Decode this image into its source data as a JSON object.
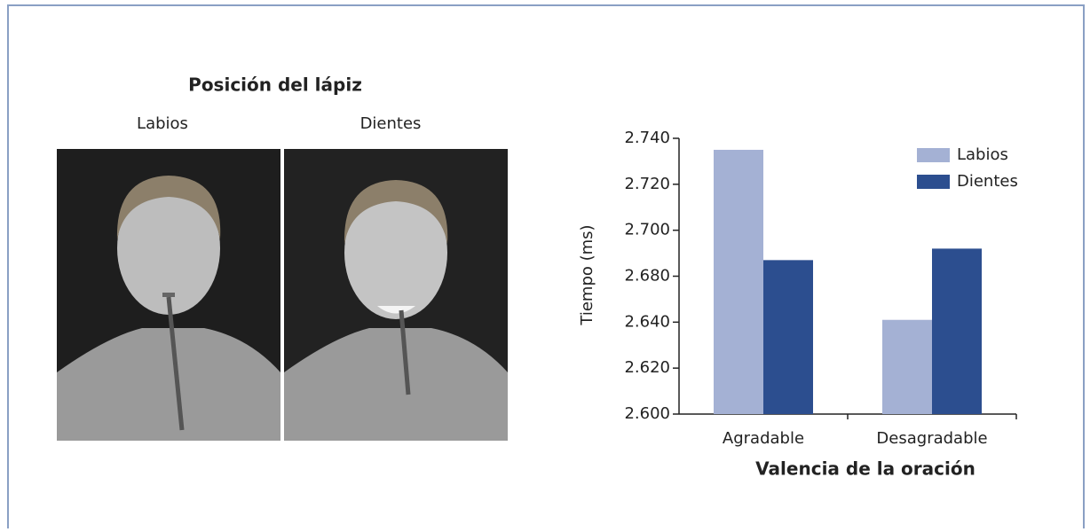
{
  "figure_title": "Posición del lápiz",
  "photo_labels": [
    "Labios",
    "Dientes"
  ],
  "chart_data": {
    "type": "bar",
    "x_label": "Valencia de la oración",
    "y_label": "Tiempo (ms)",
    "categories": [
      "Agradable",
      "Desagradable"
    ],
    "series": [
      {
        "name": "Labios",
        "color": "#a4b1d4",
        "values": [
          2735,
          2642
        ]
      },
      {
        "name": "Dientes",
        "color": "#2c4e8f",
        "values": [
          2687,
          2692
        ]
      }
    ],
    "ylim": [
      2600,
      2740
    ],
    "yticks": [
      {
        "value": 2740,
        "label": "2.740"
      },
      {
        "value": 2720,
        "label": "2.720"
      },
      {
        "value": 2700,
        "label": "2.700"
      },
      {
        "value": 2680,
        "label": "2.680"
      },
      {
        "value": 2640,
        "label": "2.640"
      },
      {
        "value": 2620,
        "label": "2.620"
      },
      {
        "value": 2600,
        "label": "2.600"
      }
    ],
    "legend": "upper right"
  }
}
